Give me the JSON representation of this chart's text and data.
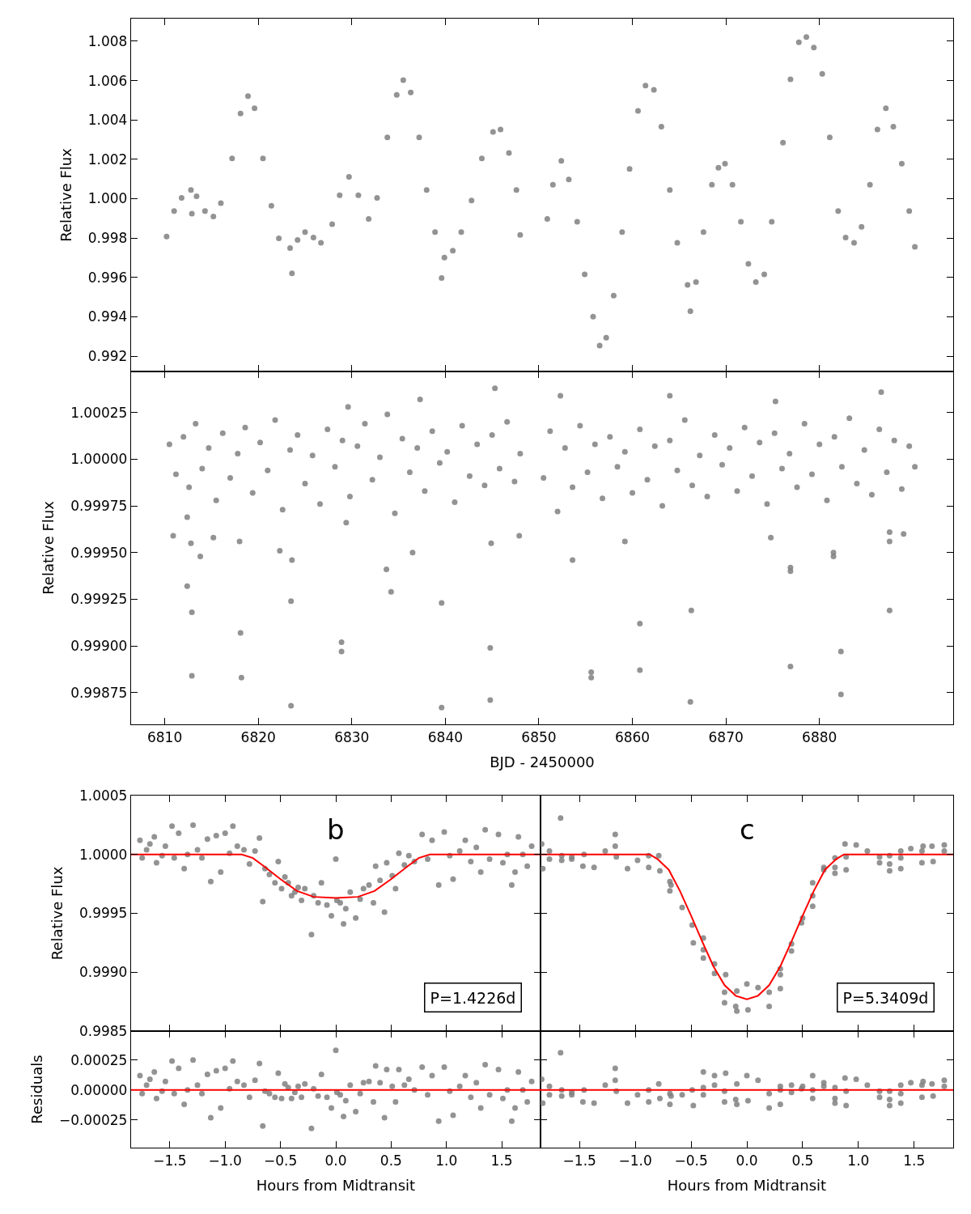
{
  "chart_data": [
    {
      "type": "scatter",
      "ylabel": "Relative Flux",
      "xlim": [
        6806.4,
        6894.3
      ],
      "ylim": [
        0.99122,
        1.00915
      ],
      "tick_labels": "y",
      "marker": "circle",
      "xticks": [
        {
          "value": 6810,
          "label": null
        },
        {
          "value": 6820,
          "label": null
        },
        {
          "value": 6830,
          "label": null
        },
        {
          "value": 6840,
          "label": null
        },
        {
          "value": 6850,
          "label": null
        },
        {
          "value": 6860,
          "label": null
        },
        {
          "value": 6870,
          "label": null
        },
        {
          "value": 6880,
          "label": null
        }
      ],
      "yticks": [
        {
          "value": 0.992,
          "label": "0.992"
        },
        {
          "value": 0.994,
          "label": "0.994"
        },
        {
          "value": 0.996,
          "label": "0.996"
        },
        {
          "value": 0.998,
          "label": "0.998"
        },
        {
          "value": 1.0,
          "label": "1.000"
        },
        {
          "value": 1.002,
          "label": "1.002"
        },
        {
          "value": 1.004,
          "label": "1.004"
        },
        {
          "value": 1.006,
          "label": "1.006"
        },
        {
          "value": 1.008,
          "label": "1.008"
        }
      ],
      "series": [
        {
          "color": "#808080",
          "x": [
            6810.2,
            6811.0,
            6811.8,
            6812.8,
            6812.9,
            6813.4,
            6814.3,
            6815.2,
            6816.0,
            6817.2,
            6818.1,
            6818.9,
            6819.6,
            6820.5,
            6821.4,
            6822.2,
            6823.4,
            6823.6,
            6824.2,
            6825.0,
            6825.9,
            6826.7,
            6827.9,
            6828.7,
            6829.7,
            6830.7,
            6831.8,
            6832.7,
            6833.8,
            6834.8,
            6835.5,
            6836.3,
            6837.2,
            6838.0,
            6838.9,
            6839.6,
            6839.9,
            6840.8,
            6841.7,
            6842.8,
            6843.9,
            6845.1,
            6845.9,
            6846.8,
            6847.6,
            6848.0,
            6850.9,
            6851.5,
            6852.4,
            6853.2,
            6854.1,
            6854.9,
            6855.8,
            6856.5,
            6857.2,
            6858.0,
            6858.9,
            6859.7,
            6860.6,
            6861.4,
            6862.3,
            6863.1,
            6864.0,
            6864.8,
            6865.9,
            6866.2,
            6866.8,
            6867.6,
            6868.5,
            6869.2,
            6869.9,
            6870.7,
            6871.6,
            6872.4,
            6873.2,
            6874.1,
            6874.9,
            6876.1,
            6876.9,
            6877.8,
            6878.6,
            6879.4,
            6880.3,
            6881.1,
            6882.0,
            6882.8,
            6883.7,
            6884.5,
            6885.4,
            6886.2,
            6887.1,
            6887.9,
            6888.8,
            6889.6,
            6890.2
          ],
          "values": [
            0.99808,
            0.99937,
            1.00004,
            1.00044,
            0.99924,
            1.00012,
            0.99937,
            0.9991,
            0.99977,
            1.00205,
            1.00433,
            1.00521,
            1.0046,
            1.00205,
            0.99964,
            0.99798,
            0.99749,
            0.99621,
            0.9979,
            0.9983,
            0.99803,
            0.99776,
            0.9987,
            1.00017,
            1.00111,
            1.00017,
            0.99897,
            1.00004,
            1.00312,
            1.00527,
            1.00602,
            1.0054,
            1.00312,
            1.00044,
            0.9983,
            0.99597,
            0.99701,
            0.99736,
            0.9983,
            0.99991,
            1.00205,
            1.00339,
            1.00352,
            1.00232,
            1.00044,
            0.99816,
            0.99897,
            1.00071,
            1.00192,
            1.00098,
            0.99883,
            0.99615,
            0.99401,
            0.99254,
            0.99294,
            0.99508,
            0.9983,
            1.00151,
            1.00446,
            1.00575,
            1.00553,
            1.00366,
            1.00044,
            0.99776,
            0.99562,
            0.99428,
            0.99576,
            0.9983,
            1.00071,
            1.00157,
            1.00178,
            1.00071,
            0.99883,
            0.99669,
            0.99576,
            0.99616,
            0.99883,
            1.00285,
            1.00607,
            1.00795,
            1.00821,
            1.00768,
            1.00634,
            1.00312,
            0.99937,
            0.99803,
            0.99776,
            0.99857,
            1.00071,
            1.00352,
            1.0046,
            1.00366,
            1.00178,
            0.99937,
            0.99755
          ]
        }
      ]
    },
    {
      "type": "scatter",
      "xlabel": "BJD - 2450000",
      "ylabel": "Relative Flux",
      "xlim": [
        6806.4,
        6894.3
      ],
      "ylim": [
        0.99858,
        1.00047
      ],
      "marker": "circle",
      "xticks": [
        6810,
        6820,
        6830,
        6840,
        6850,
        6860,
        6870,
        6880
      ],
      "yticks": [
        {
          "value": 0.99875,
          "label": "0.99875"
        },
        {
          "value": 0.999,
          "label": "0.99900"
        },
        {
          "value": 0.99925,
          "label": "0.99925"
        },
        {
          "value": 0.9995,
          "label": "0.99950"
        },
        {
          "value": 0.99975,
          "label": "0.99975"
        },
        {
          "value": 1.0,
          "label": "1.00000"
        },
        {
          "value": 1.00025,
          "label": "1.00025"
        }
      ],
      "series": [
        {
          "color": "#808080",
          "x": [
            6810.5,
            6811.2,
            6812.0,
            6812.6,
            6813.3,
            6814.0,
            6814.7,
            6815.5,
            6816.2,
            6817.0,
            6817.8,
            6818.6,
            6819.4,
            6820.2,
            6821.0,
            6821.8,
            6822.6,
            6823.4,
            6824.2,
            6825.0,
            6825.8,
            6826.6,
            6827.4,
            6828.2,
            6829.0,
            6829.8,
            6830.6,
            6831.4,
            6832.2,
            6833.0,
            6833.8,
            6834.6,
            6835.4,
            6836.2,
            6837.0,
            6837.8,
            6838.6,
            6839.4,
            6840.2,
            6841.0,
            6841.8,
            6842.6,
            6843.4,
            6844.2,
            6845.0,
            6845.8,
            6846.6,
            6847.4,
            6848.0,
            6850.5,
            6851.2,
            6852.0,
            6852.8,
            6853.6,
            6854.4,
            6855.2,
            6856.0,
            6856.8,
            6857.6,
            6858.4,
            6859.2,
            6860.0,
            6860.8,
            6861.6,
            6862.4,
            6863.2,
            6864.0,
            6864.8,
            6865.6,
            6866.4,
            6867.2,
            6868.0,
            6868.8,
            6869.6,
            6870.4,
            6871.2,
            6872.0,
            6872.8,
            6873.6,
            6874.4,
            6875.2,
            6876.0,
            6876.8,
            6877.6,
            6878.4,
            6879.2,
            6880.0,
            6880.8,
            6881.6,
            6882.4,
            6883.2,
            6884.0,
            6884.8,
            6885.6,
            6886.4,
            6887.2,
            6888.0,
            6888.8,
            6889.6,
            6890.2,
            6810.9,
            6812.4,
            6812.4,
            6812.9,
            6812.9,
            6813.8,
            6812.8,
            6815.2,
            6818.1,
            6818.2,
            6818.0,
            6822.3,
            6823.6,
            6823.5,
            6823.5,
            6828.9,
            6828.9,
            6829.4,
            6833.7,
            6834.2,
            6836.5,
            6839.6,
            6839.6,
            6844.8,
            6844.8,
            6844.9,
            6847.9,
            6853.6,
            6855.6,
            6855.6,
            6860.8,
            6860.8,
            6859.2,
            6866.3,
            6866.2,
            6874.8,
            6876.9,
            6876.9,
            6876.9,
            6881.5,
            6881.5,
            6882.3,
            6882.3,
            6887.5,
            6887.5,
            6887.5,
            6889.0,
            6845.3,
            6837.3,
            6852.3,
            6864.0,
            6886.6,
            6829.6,
            6875.3
          ],
          "values": [
            1.00008,
            0.99992,
            1.00012,
            0.99985,
            1.00019,
            0.99995,
            1.00006,
            0.99978,
            1.00014,
            0.9999,
            1.00003,
            1.00017,
            0.99982,
            1.00009,
            0.99994,
            1.00021,
            0.99973,
            1.00005,
            1.00013,
            0.99987,
            1.00002,
            0.99976,
            1.00016,
            0.99996,
            1.0001,
            0.9998,
            1.00007,
            1.00019,
            0.99989,
            1.00001,
            1.00024,
            0.99971,
            1.00011,
            0.99993,
            1.00006,
            0.99983,
            1.00015,
            0.99998,
            1.00004,
            0.99977,
            1.00018,
            0.99991,
            1.00008,
            0.99986,
            1.00013,
            0.99995,
            1.0002,
            0.99988,
            1.00003,
            0.9999,
            1.00015,
            0.99972,
            1.00006,
            0.99985,
            1.00018,
            0.99993,
            1.00008,
            0.99979,
            1.00012,
            0.99996,
            1.00004,
            0.99982,
            1.00016,
            0.99989,
            1.00007,
            0.99975,
            1.0001,
            0.99994,
            1.00021,
            0.99986,
            1.00002,
            0.9998,
            1.00013,
            0.99997,
            1.00006,
            0.99983,
            1.00017,
            0.99991,
            1.00009,
            0.99976,
            1.00014,
            0.99995,
            1.00003,
            0.99985,
            1.00019,
            0.99992,
            1.00008,
            0.99978,
            1.00012,
            0.99996,
            1.00022,
            0.99987,
            1.00005,
            0.99981,
            1.00016,
            0.99993,
            1.0001,
            0.99984,
            1.00007,
            0.99996,
            0.99959,
            0.99969,
            0.99932,
            0.99918,
            0.99884,
            0.99948,
            0.99955,
            0.99958,
            0.99907,
            0.99883,
            0.99956,
            0.99951,
            0.99946,
            0.99924,
            0.99868,
            0.99902,
            0.99897,
            0.99966,
            0.99941,
            0.99929,
            0.9995,
            0.99923,
            0.99867,
            0.99899,
            0.99871,
            0.99955,
            0.99959,
            0.99946,
            0.99886,
            0.99883,
            0.99912,
            0.99887,
            0.99956,
            0.99919,
            0.9987,
            0.99958,
            0.99942,
            0.9994,
            0.99889,
            0.9995,
            0.99948,
            0.99897,
            0.99874,
            0.99919,
            0.99956,
            0.99961,
            0.9996,
            1.00038,
            1.00032,
            1.00034,
            1.00034,
            1.00036,
            1.00028,
            1.00031
          ]
        }
      ]
    },
    {
      "type": "scatter",
      "ylabel": "Relative Flux",
      "xlim": [
        -1.85,
        1.85
      ],
      "ylim": [
        0.9985,
        1.0005
      ],
      "tick_labels": "y",
      "marker": "circle",
      "xticks": [
        {
          "value": -1.5,
          "label": null
        },
        {
          "value": -1.0,
          "label": null
        },
        {
          "value": -0.5,
          "label": null
        },
        {
          "value": 0.0,
          "label": null
        },
        {
          "value": 0.5,
          "label": null
        },
        {
          "value": 1.0,
          "label": null
        },
        {
          "value": 1.5,
          "label": null
        }
      ],
      "yticks": [
        {
          "value": 0.9985,
          "label": "0.9985"
        },
        {
          "value": 0.999,
          "label": "0.9990"
        },
        {
          "value": 0.9995,
          "label": "0.9995"
        },
        {
          "value": 1.0,
          "label": "1.0000"
        },
        {
          "value": 1.0005,
          "label": "1.0005"
        }
      ],
      "annotations": [
        "b",
        "P=1.4226d"
      ],
      "series": [
        {
          "color": "#808080",
          "x": [
            -1.77,
            -1.75,
            -1.71,
            -1.68,
            -1.64,
            -1.62,
            -1.57,
            -1.54,
            -1.48,
            -1.46,
            -1.42,
            -1.37,
            -1.34,
            -1.29,
            -1.25,
            -1.21,
            -1.16,
            -1.13,
            -1.08,
            -1.04,
            -1.0,
            -0.96,
            -0.93,
            -0.89,
            -0.83,
            -0.78,
            -0.73,
            -0.69,
            -0.66,
            -0.64,
            -0.6,
            -0.55,
            -0.52,
            -0.49,
            -0.46,
            -0.43,
            -0.4,
            -0.37,
            -0.34,
            -0.31,
            -0.28,
            -0.22,
            -0.2,
            -0.16,
            -0.13,
            -0.08,
            -0.04,
            0.0,
            0.01,
            0.04,
            0.07,
            0.09,
            0.13,
            0.18,
            0.22,
            0.25,
            0.3,
            0.34,
            0.36,
            0.4,
            0.44,
            0.46,
            0.51,
            0.54,
            0.57,
            0.62,
            0.66,
            0.71,
            0.78,
            0.83,
            0.87,
            0.93,
            0.98,
            1.03,
            1.06,
            1.12,
            1.17,
            1.22,
            1.27,
            1.31,
            1.35,
            1.39,
            1.47,
            1.51,
            1.55,
            1.59,
            1.62,
            1.65,
            1.69,
            1.73,
            1.77
          ],
          "values": [
            1.00012,
            0.99997,
            1.00004,
            1.00009,
            1.00015,
            0.99993,
            0.99999,
            1.00007,
            1.00024,
            0.99997,
            1.00018,
            0.99988,
            1.0,
            1.00025,
            1.00004,
            0.99997,
            1.00013,
            0.99977,
            1.00016,
            0.99985,
            1.00018,
            1.00001,
            1.00024,
            1.00007,
            1.00004,
            0.99992,
            1.00003,
            1.00014,
            0.9996,
            0.99988,
            0.99983,
            0.99976,
            0.99994,
            0.99971,
            0.99981,
            0.99976,
            0.99965,
            0.99968,
            0.99972,
            0.99961,
            0.99971,
            0.99932,
            0.99965,
            0.99959,
            0.99976,
            0.99957,
            0.99948,
            0.99996,
            0.99961,
            0.99959,
            0.99941,
            0.99954,
            0.99968,
            0.99946,
            0.99962,
            0.99971,
            0.99974,
            0.99959,
            0.9999,
            0.99978,
            0.99951,
            0.99993,
            0.99982,
            0.99971,
            1.00001,
            0.99991,
            0.99999,
            0.99994,
            1.00017,
            0.99996,
            1.00012,
            0.99974,
            1.00019,
            0.99999,
            0.99979,
            1.00003,
            1.00012,
            0.99994,
            1.00006,
            0.99985,
            1.00021,
            0.99996,
            1.00017,
            0.99993,
            1.0,
            0.99974,
            0.99985,
            1.00015,
            1.0,
            0.9999,
            1.00007
          ]
        },
        {
          "type": "line",
          "marker": "none",
          "color": "#ff0000",
          "x": [
            -1.85,
            -0.85,
            -0.75,
            -0.65,
            -0.5,
            -0.35,
            -0.2,
            0.0,
            0.2,
            0.35,
            0.5,
            0.65,
            0.75,
            0.85,
            1.85
          ],
          "values": [
            1.0,
            1.0,
            0.99997,
            0.9999,
            0.99979,
            0.99969,
            0.99964,
            0.99963,
            0.99964,
            0.99969,
            0.99979,
            0.9999,
            0.99997,
            1.0,
            1.0
          ]
        }
      ]
    },
    {
      "type": "scatter",
      "xlim": [
        -1.85,
        1.85
      ],
      "ylim": [
        0.9985,
        1.0005
      ],
      "tick_labels": false,
      "marker": "circle",
      "xticks": [
        {
          "value": -1.5,
          "label": null
        },
        {
          "value": -1.0,
          "label": null
        },
        {
          "value": -0.5,
          "label": null
        },
        {
          "value": 0.0,
          "label": null
        },
        {
          "value": 0.5,
          "label": null
        },
        {
          "value": 1.0,
          "label": null
        },
        {
          "value": 1.5,
          "label": null
        }
      ],
      "yticks": [
        {
          "value": 0.9985,
          "label": null
        },
        {
          "value": 0.999,
          "label": null
        },
        {
          "value": 0.9995,
          "label": null
        },
        {
          "value": 1.0,
          "label": null
        },
        {
          "value": 1.0005,
          "label": null
        }
      ],
      "annotations": [
        "c",
        "P=5.3409d"
      ],
      "series": [
        {
          "color": "#808080",
          "x": [
            -1.84,
            -1.83,
            -1.77,
            -1.77,
            -1.67,
            -1.66,
            -1.66,
            -1.57,
            -1.57,
            -1.47,
            -1.46,
            -1.37,
            -1.27,
            -1.18,
            -1.18,
            -1.17,
            -1.07,
            -0.98,
            -0.88,
            -0.88,
            -0.79,
            -0.78,
            -0.69,
            -0.68,
            -0.69,
            -0.58,
            -0.49,
            -0.48,
            -0.39,
            -0.39,
            -0.39,
            -0.29,
            -0.29,
            -0.19,
            -0.2,
            -0.2,
            -0.09,
            -0.1,
            -0.09,
            0.0,
            0.01,
            0.1,
            0.2,
            0.2,
            0.3,
            0.3,
            0.3,
            0.4,
            0.4,
            0.49,
            0.5,
            0.59,
            0.59,
            0.59,
            0.69,
            0.69,
            0.79,
            0.79,
            0.79,
            0.88,
            0.89,
            0.89,
            0.98,
            1.08,
            1.19,
            1.19,
            1.28,
            1.28,
            1.28,
            1.38,
            1.38,
            1.38,
            1.47,
            1.57,
            1.57,
            1.58,
            1.67,
            1.66,
            1.77,
            1.77
          ],
          "values": [
            1.00009,
            0.99988,
            1.00003,
            0.99996,
            1.00031,
            0.99995,
            0.99999,
            0.99996,
            0.99998,
            0.9999,
            1.0,
            0.99989,
            1.00003,
            1.00017,
            1.00007,
            0.99998,
            0.99988,
            0.99995,
            0.99989,
            0.99999,
            0.99999,
            0.99986,
            0.99977,
            0.99974,
            0.99969,
            0.99955,
            0.9994,
            0.99925,
            0.99929,
            0.99919,
            0.99912,
            0.99907,
            0.99899,
            0.99898,
            0.99883,
            0.99874,
            0.99884,
            0.99871,
            0.99867,
            0.9989,
            0.99868,
            0.99887,
            0.99883,
            0.99871,
            0.99886,
            0.99898,
            0.99903,
            0.99918,
            0.99924,
            0.99942,
            0.99946,
            0.99956,
            0.99965,
            0.99976,
            0.99989,
            0.99987,
            0.99997,
            0.99989,
            0.99984,
            1.00009,
            0.99998,
            0.99987,
            1.00008,
            1.00003,
            0.99998,
            0.99993,
            0.99992,
            0.99986,
            0.99999,
            0.99997,
            0.99988,
            1.00003,
            1.00005,
            1.00003,
            0.99993,
            1.00007,
            0.99994,
            1.00007,
            1.00003,
            1.00008
          ]
        },
        {
          "type": "line",
          "marker": "none",
          "color": "#ff0000",
          "x": [
            -1.85,
            -0.87,
            -0.8,
            -0.7,
            -0.6,
            -0.5,
            -0.4,
            -0.3,
            -0.2,
            -0.1,
            0.0,
            0.1,
            0.2,
            0.3,
            0.4,
            0.5,
            0.6,
            0.7,
            0.8,
            0.87,
            1.85
          ],
          "values": [
            1.0,
            1.0,
            0.99996,
            0.99987,
            0.99969,
            0.99948,
            0.99926,
            0.99905,
            0.99889,
            0.9988,
            0.99877,
            0.9988,
            0.99889,
            0.99905,
            0.99926,
            0.99948,
            0.99969,
            0.99987,
            0.99996,
            1.0,
            1.0
          ]
        }
      ]
    },
    {
      "type": "scatter",
      "xlabel": "Hours from Midtransit",
      "ylabel": "Residuals",
      "xlim": [
        -1.85,
        1.85
      ],
      "ylim": [
        -0.00048,
        0.00049
      ],
      "marker": "circle",
      "xticks": [
        {
          "value": -1.5,
          "label": "−1.5"
        },
        {
          "value": -1.0,
          "label": "−1.0"
        },
        {
          "value": -0.5,
          "label": "−0.5"
        },
        {
          "value": 0.0,
          "label": "0.0"
        },
        {
          "value": 0.5,
          "label": "0.5"
        },
        {
          "value": 1.0,
          "label": "1.0"
        },
        {
          "value": 1.5,
          "label": "1.5"
        }
      ],
      "yticks": [
        {
          "value": -0.00025,
          "label": "−0.00025"
        },
        {
          "value": 0.0,
          "label": "0.00000"
        },
        {
          "value": 0.00025,
          "label": "0.00025"
        }
      ],
      "ref_lines": [
        {
          "axis": "y",
          "value": 0.0,
          "color": "#ff0000"
        }
      ],
      "series": [
        {
          "color": "#808080",
          "x": [
            -1.77,
            -1.75,
            -1.71,
            -1.68,
            -1.64,
            -1.62,
            -1.57,
            -1.54,
            -1.48,
            -1.46,
            -1.42,
            -1.37,
            -1.34,
            -1.29,
            -1.25,
            -1.21,
            -1.16,
            -1.13,
            -1.08,
            -1.04,
            -1.0,
            -0.96,
            -0.93,
            -0.89,
            -0.83,
            -0.78,
            -0.73,
            -0.69,
            -0.66,
            -0.64,
            -0.6,
            -0.55,
            -0.52,
            -0.49,
            -0.46,
            -0.43,
            -0.4,
            -0.37,
            -0.34,
            -0.31,
            -0.28,
            -0.22,
            -0.2,
            -0.16,
            -0.13,
            -0.08,
            -0.04,
            0.0,
            0.01,
            0.04,
            0.07,
            0.09,
            0.13,
            0.18,
            0.22,
            0.25,
            0.3,
            0.34,
            0.36,
            0.4,
            0.44,
            0.46,
            0.51,
            0.54,
            0.57,
            0.62,
            0.66,
            0.71,
            0.78,
            0.83,
            0.87,
            0.93,
            0.98,
            1.03,
            1.06,
            1.12,
            1.17,
            1.22,
            1.27,
            1.31,
            1.35,
            1.39,
            1.47,
            1.51,
            1.55,
            1.59,
            1.62,
            1.65,
            1.69,
            1.73,
            1.77
          ],
          "values": [
            0.00012,
            -3e-05,
            4e-05,
            9e-05,
            0.00015,
            -7e-05,
            -1e-05,
            7e-05,
            0.00024,
            -3e-05,
            0.00018,
            -0.00012,
            0.0,
            0.00025,
            4e-05,
            -3e-05,
            0.00013,
            -0.00023,
            0.00016,
            -0.00015,
            0.00018,
            1e-05,
            0.00024,
            7e-05,
            4e-05,
            -6e-05,
            8e-05,
            0.00022,
            -0.0003,
            -1e-05,
            -3e-05,
            -6e-05,
            0.00014,
            -7e-05,
            5e-05,
            2e-05,
            -7e-05,
            -2e-05,
            3e-05,
            -6e-05,
            5e-05,
            -0.00032,
            1e-05,
            -5e-05,
            0.00013,
            -6e-05,
            -0.00015,
            0.00033,
            -2e-05,
            -4e-05,
            -0.00022,
            -9e-05,
            4e-05,
            -0.00018,
            -3e-05,
            6e-05,
            7e-05,
            -0.0001,
            0.0002,
            6e-05,
            -0.00023,
            0.00017,
            3e-05,
            -0.0001,
            0.00017,
            4e-05,
            9e-05,
            0.0,
            0.00019,
            -4e-05,
            0.00012,
            -0.00026,
            0.00019,
            -1e-05,
            -0.00021,
            3e-05,
            0.00012,
            -6e-05,
            6e-05,
            -0.00015,
            0.00021,
            -4e-05,
            0.00017,
            -7e-05,
            0.0,
            -0.00026,
            -0.00015,
            0.00015,
            0.0,
            -0.0001,
            7e-05
          ]
        }
      ]
    },
    {
      "type": "scatter",
      "xlabel": "Hours from Midtransit",
      "xlim": [
        -1.85,
        1.85
      ],
      "ylim": [
        -0.00048,
        0.00049
      ],
      "tick_labels": "x",
      "marker": "circle",
      "xticks": [
        {
          "value": -1.5,
          "label": "−1.5"
        },
        {
          "value": -1.0,
          "label": "−1.0"
        },
        {
          "value": -0.5,
          "label": "−0.5"
        },
        {
          "value": 0.0,
          "label": "0.0"
        },
        {
          "value": 0.5,
          "label": "0.5"
        },
        {
          "value": 1.0,
          "label": "1.0"
        },
        {
          "value": 1.5,
          "label": "1.5"
        }
      ],
      "yticks": [
        {
          "value": -0.00025,
          "label": null
        },
        {
          "value": 0.0,
          "label": null
        },
        {
          "value": 0.00025,
          "label": null
        }
      ],
      "ref_lines": [
        {
          "axis": "y",
          "value": 0.0,
          "color": "#ff0000"
        }
      ],
      "series": [
        {
          "color": "#808080",
          "x": [
            -1.84,
            -1.83,
            -1.77,
            -1.77,
            -1.67,
            -1.66,
            -1.66,
            -1.57,
            -1.57,
            -1.47,
            -1.46,
            -1.37,
            -1.27,
            -1.18,
            -1.18,
            -1.17,
            -1.07,
            -0.98,
            -0.88,
            -0.88,
            -0.79,
            -0.78,
            -0.69,
            -0.68,
            -0.69,
            -0.58,
            -0.49,
            -0.48,
            -0.39,
            -0.39,
            -0.39,
            -0.29,
            -0.29,
            -0.19,
            -0.2,
            -0.2,
            -0.09,
            -0.1,
            -0.09,
            0.0,
            0.01,
            0.1,
            0.2,
            0.2,
            0.3,
            0.3,
            0.3,
            0.4,
            0.4,
            0.49,
            0.5,
            0.59,
            0.59,
            0.59,
            0.69,
            0.69,
            0.79,
            0.79,
            0.79,
            0.88,
            0.89,
            0.89,
            0.98,
            1.08,
            1.19,
            1.19,
            1.28,
            1.28,
            1.28,
            1.38,
            1.38,
            1.38,
            1.47,
            1.57,
            1.57,
            1.58,
            1.67,
            1.66,
            1.77,
            1.77
          ],
          "values": [
            9e-05,
            -0.00011,
            3e-05,
            -4e-05,
            0.00031,
            -5e-05,
            0.0,
            -4e-05,
            -2e-05,
            -0.0001,
            0.0,
            -0.00011,
            4e-05,
            0.00018,
            8e-05,
            -1e-05,
            -0.00011,
            -4e-05,
            -0.0001,
            0.0,
            5e-05,
            -7e-05,
            -3e-05,
            -5e-05,
            -0.00012,
            -4e-05,
            0.0,
            -0.00013,
            0.00015,
            2e-05,
            -4e-05,
            0.00012,
            4e-05,
            0.00014,
            -1e-05,
            -0.0001,
            5e-05,
            -8e-05,
            -0.00012,
            0.00012,
            -9e-05,
            8e-05,
            -3e-05,
            -0.00015,
            3e-05,
            0.0,
            -0.00012,
            4e-05,
            -2e-05,
            1e-05,
            3e-05,
            0.00012,
            0.0,
            -7e-05,
            6e-05,
            3e-05,
            2e-05,
            -7e-05,
            -0.00011,
            0.0001,
            -1e-05,
            -0.00013,
            9e-05,
            4e-05,
            -1e-05,
            -6e-05,
            -8e-05,
            -0.00013,
            -1e-05,
            4e-05,
            -0.00011,
            -3e-05,
            6e-05,
            4e-05,
            -6e-05,
            7e-05,
            -5e-05,
            5e-05,
            3e-05,
            8e-05
          ]
        }
      ]
    }
  ]
}
